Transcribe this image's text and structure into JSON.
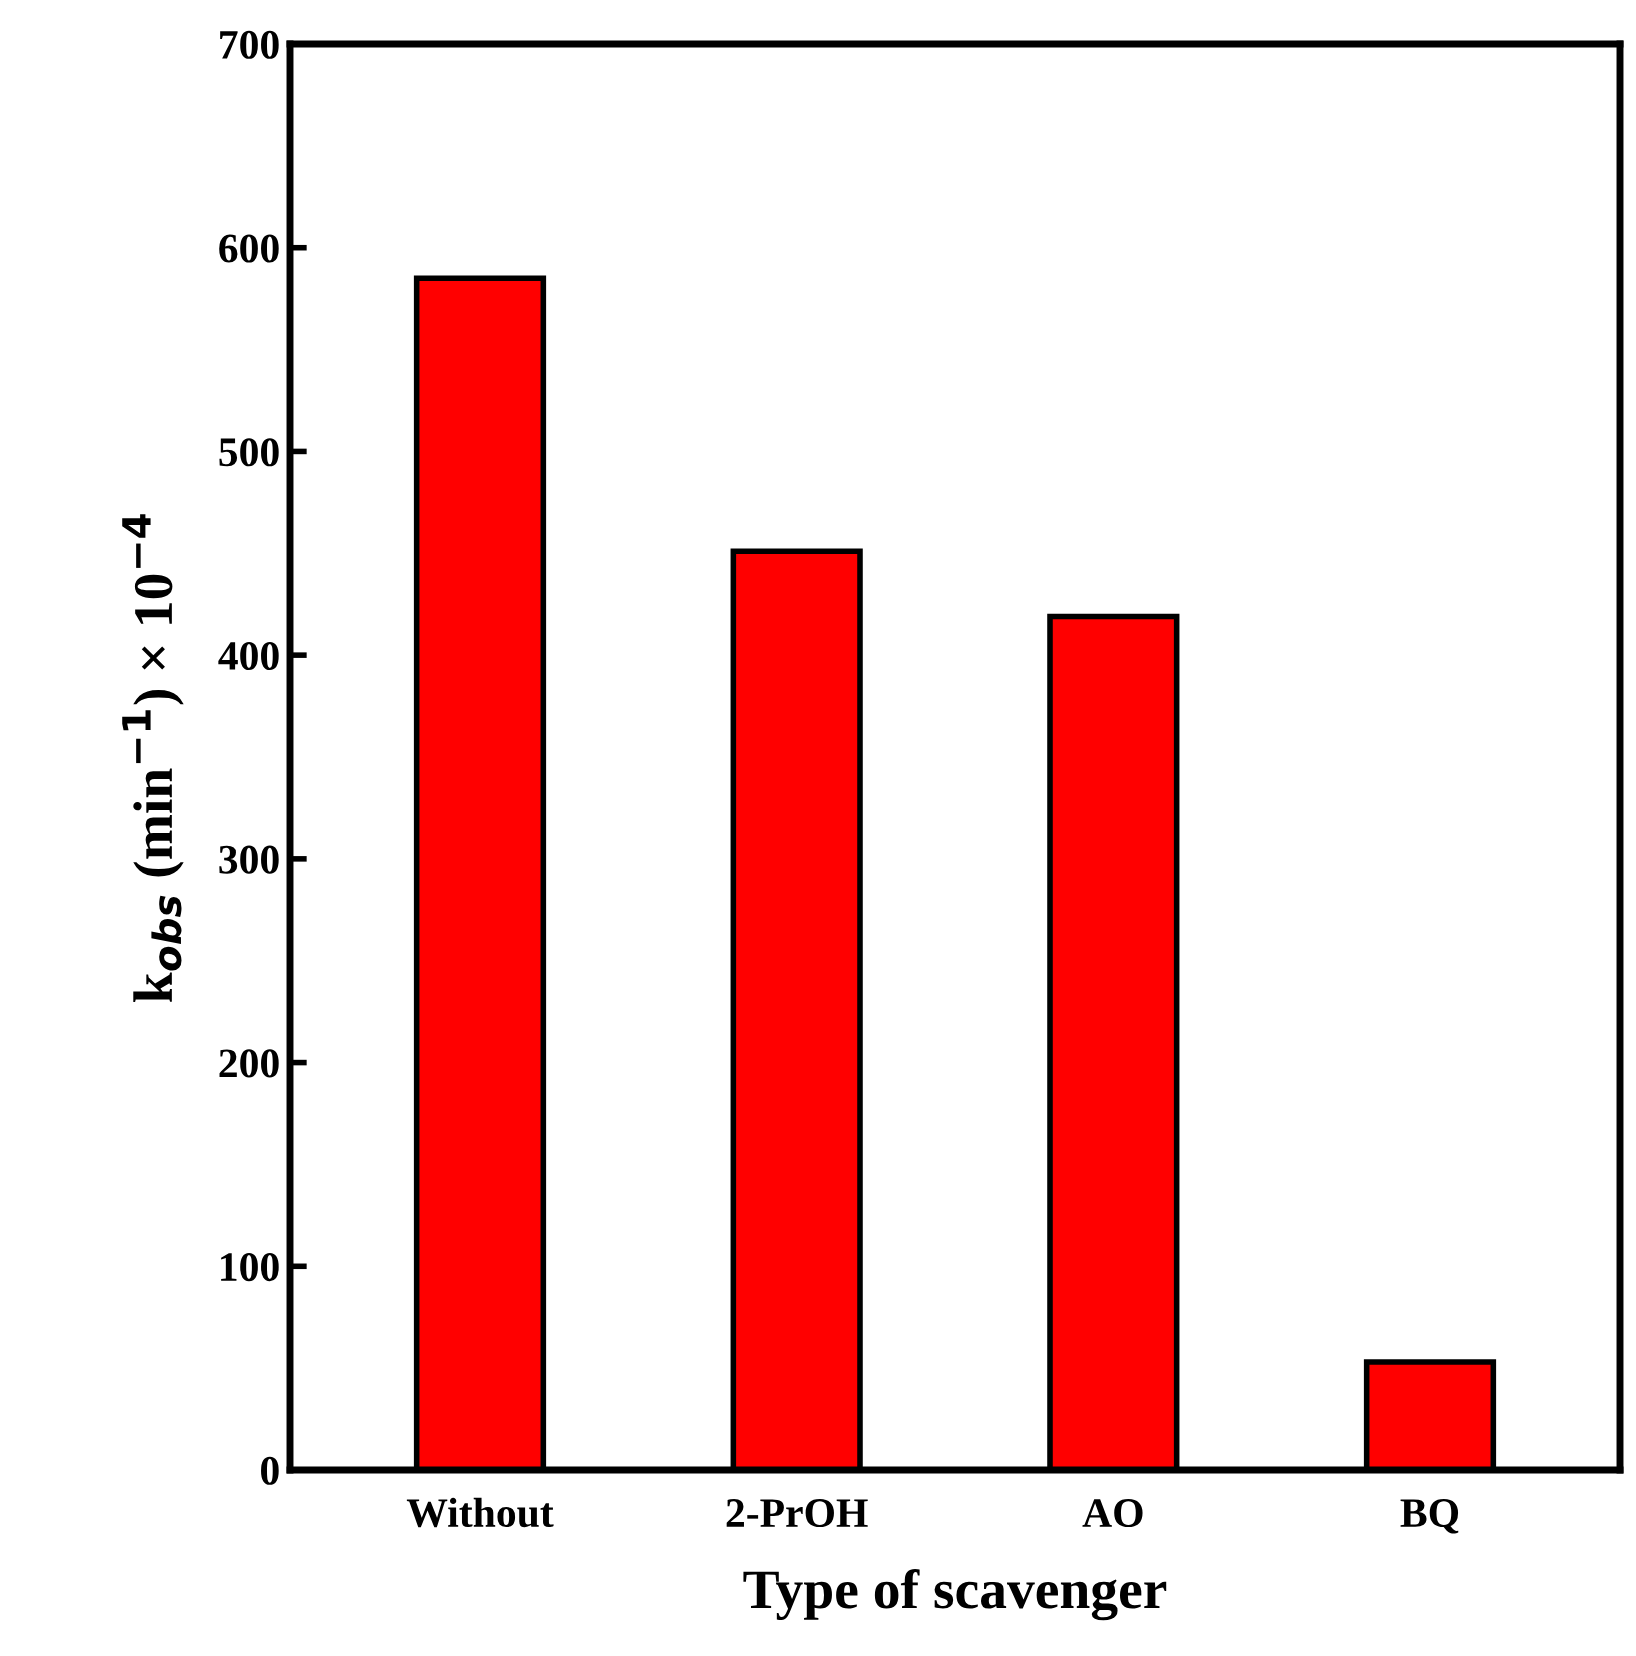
{
  "chart_data": {
    "type": "bar",
    "xlabel": "Type of scavenger",
    "ylabel": "k$_{obs}$ (min$^{−1}$) × 10$^{−4}$",
    "categories": [
      "Without",
      "2-PrOH",
      "AO",
      "BQ"
    ],
    "values": [
      585,
      451,
      419,
      53
    ],
    "color": "#ff0000",
    "ylim": [
      0,
      700
    ],
    "yticks": [
      0,
      100,
      200,
      300,
      400,
      500,
      600,
      700
    ],
    "grid": false
  }
}
